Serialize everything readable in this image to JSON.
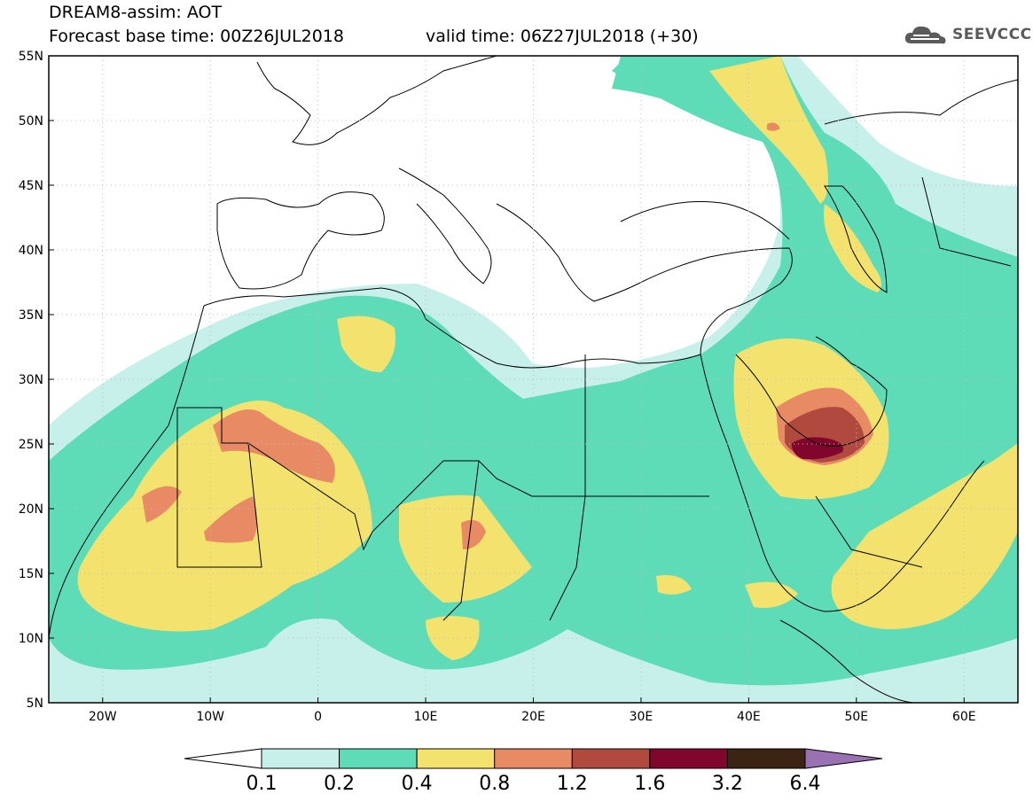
{
  "header": {
    "title": "DREAM8-assim: AOT",
    "base_time": "Forecast base time: 00Z26JUL2018",
    "valid_time": "valid time: 06Z27JUL2018 (+30)",
    "logo_text": "SEEVCCC"
  },
  "map": {
    "lat_labels": [
      "55N",
      "50N",
      "45N",
      "40N",
      "35N",
      "30N",
      "25N",
      "20N",
      "15N",
      "10N",
      "5N"
    ],
    "lon_labels": [
      "20W",
      "10W",
      "0",
      "10E",
      "20E",
      "30E",
      "40E",
      "50E",
      "60E"
    ],
    "colors": {
      "level_0_1": "#c8f0ea",
      "level_0_2": "#5edcb8",
      "level_0_4": "#f4e26e",
      "level_0_8": "#e88a64",
      "level_1_2": "#b04a3e",
      "level_1_6": "#80062e",
      "level_3_2": "#3c2414",
      "level_6_4": "#9a72b4"
    }
  },
  "colorbar": {
    "labels": [
      "0.1",
      "0.2",
      "0.4",
      "0.8",
      "1.2",
      "1.6",
      "3.2",
      "6.4"
    ],
    "colors": [
      "#c8f0ea",
      "#5edcb8",
      "#f4e26e",
      "#e88a64",
      "#b04a3e",
      "#80062e",
      "#3c2414"
    ],
    "under_color": "#ffffff",
    "over_color": "#9a72b4"
  }
}
